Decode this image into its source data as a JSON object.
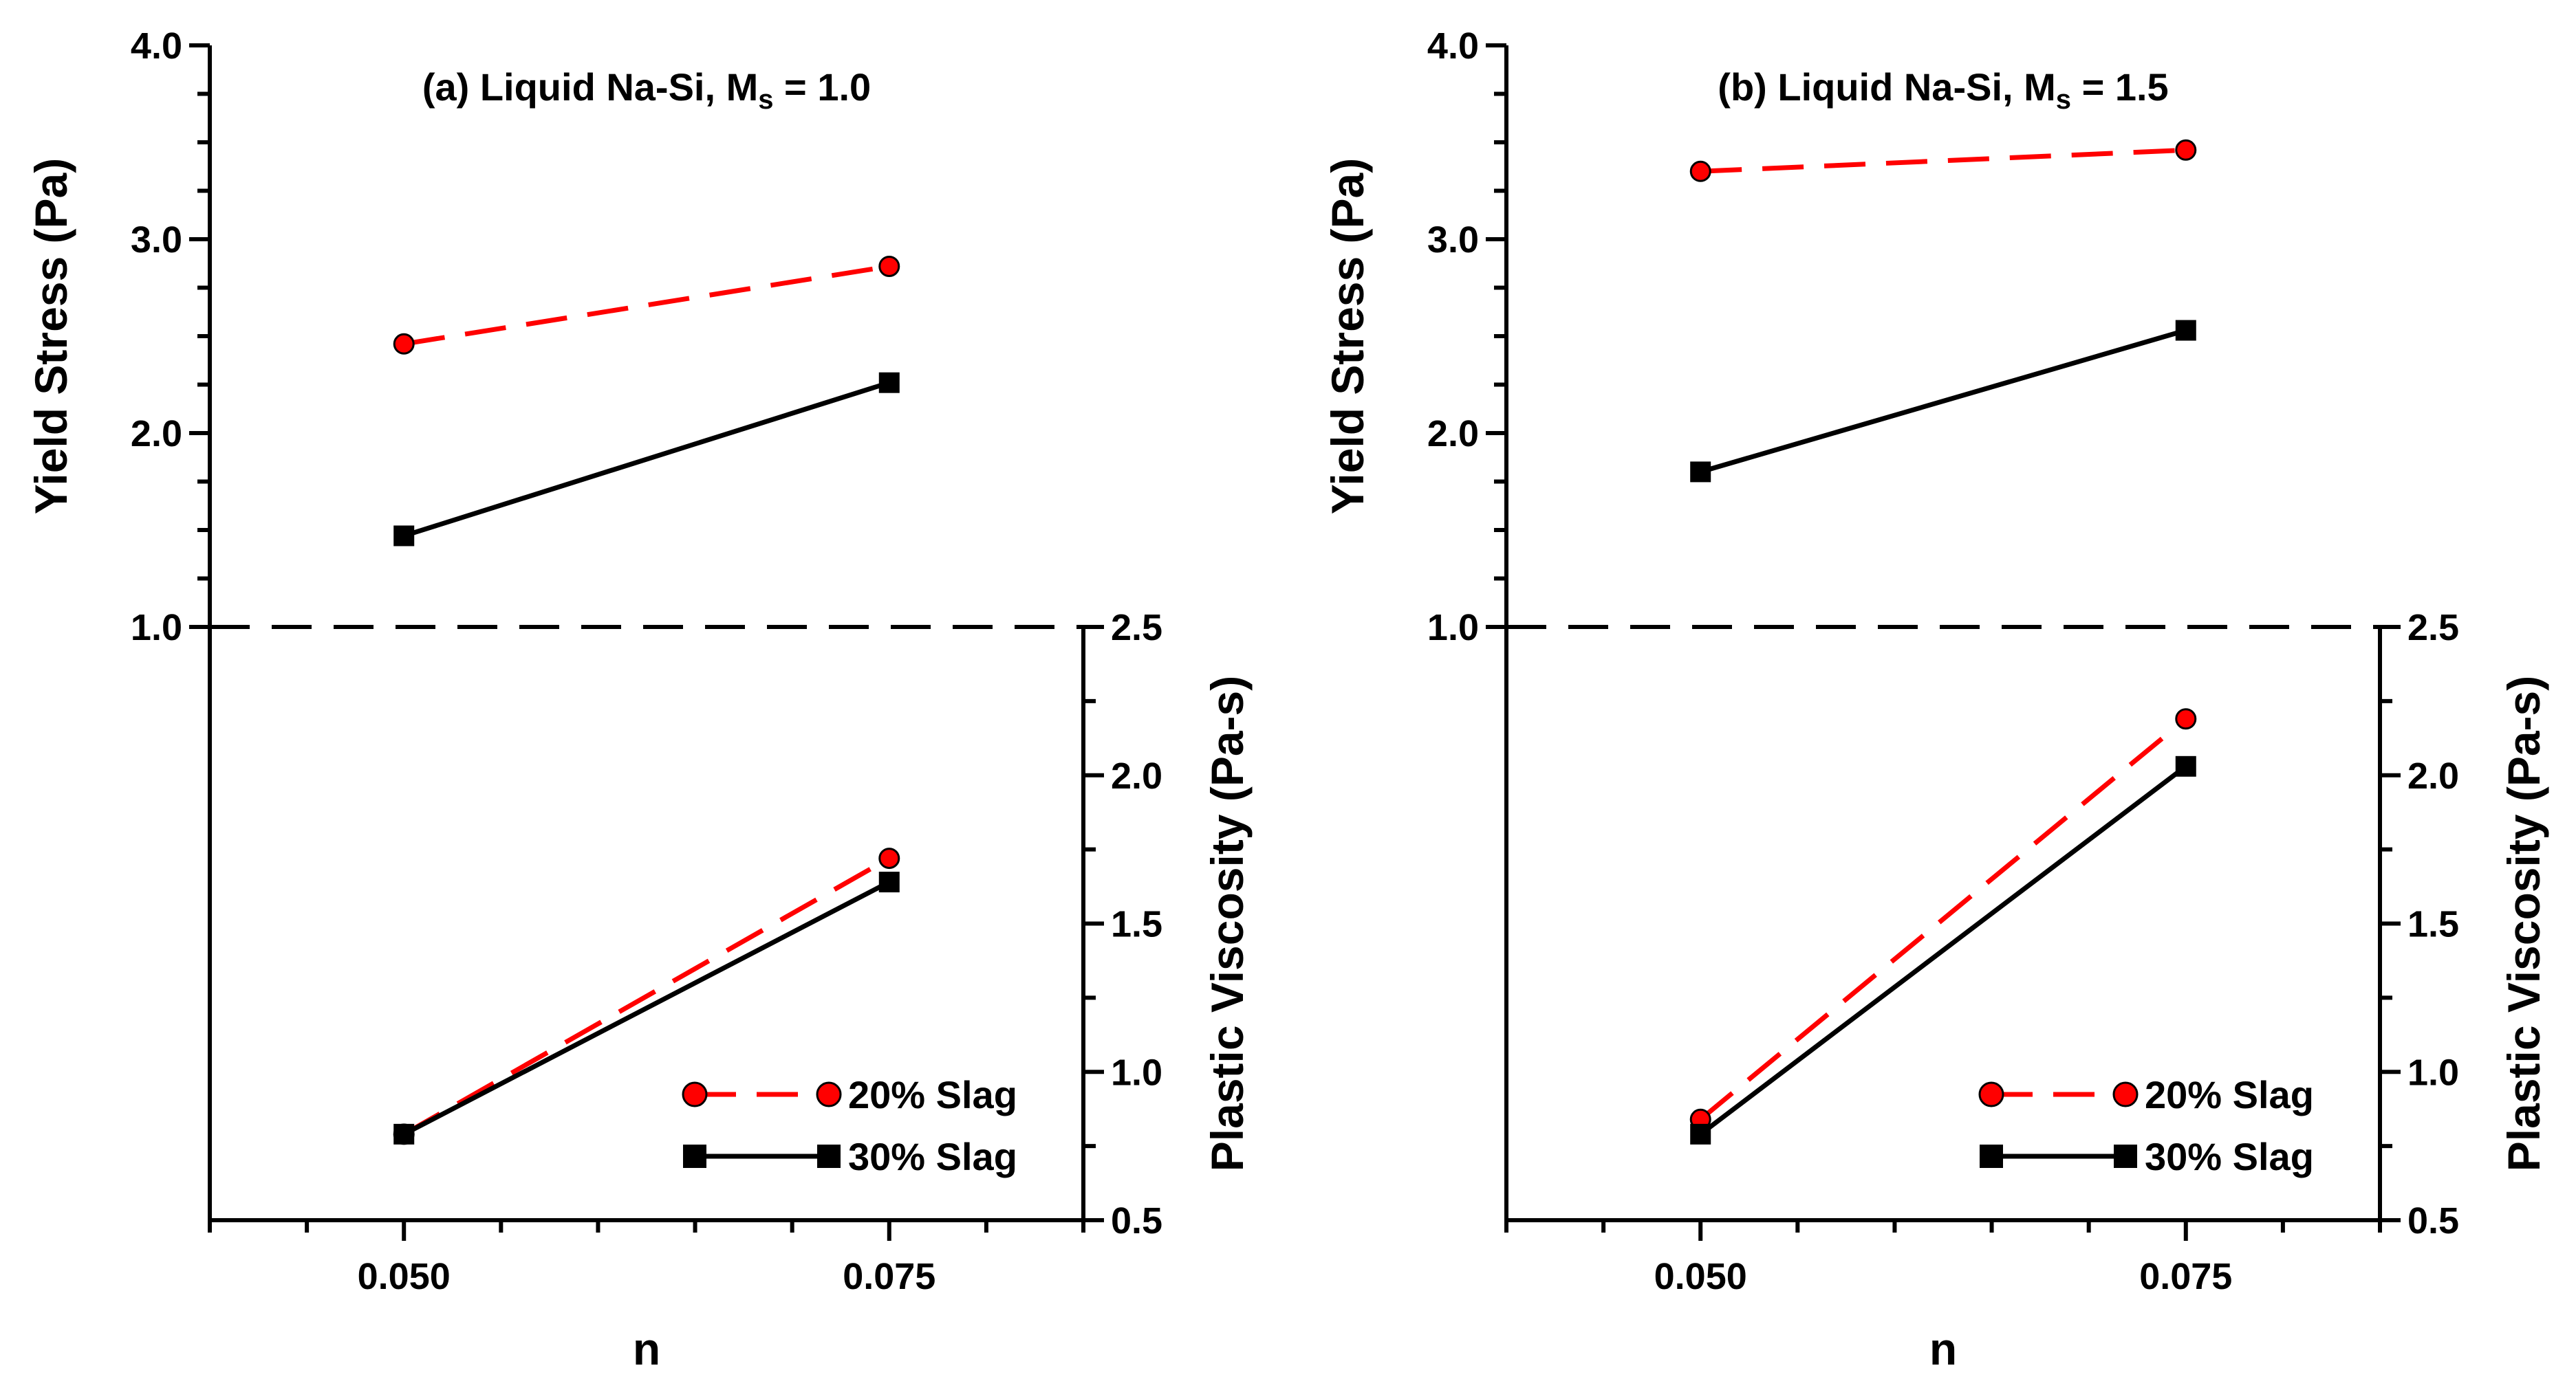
{
  "chart_data": [
    {
      "type": "line",
      "title": "(a) Liquid Na-Si, M",
      "title_sub": "s",
      "title_tail": " = 1.0",
      "xlabel": "n",
      "ylabel_left": "Yield Stress (Pa)",
      "ylabel_right": "Plastic Viscosity (Pa-s)",
      "xlim": [
        0.04,
        0.085
      ],
      "x_ticks": [
        "0.050",
        "0.075"
      ],
      "x_tick_values": [
        0.05,
        0.075
      ],
      "y_left_lim": [
        1.0,
        4.0
      ],
      "y_left_ticks": [
        "1.0",
        "2.0",
        "3.0",
        "4.0"
      ],
      "y_right_lim": [
        0.5,
        2.5
      ],
      "y_right_ticks": [
        "0.5",
        "1.0",
        "1.5",
        "2.0",
        "2.5"
      ],
      "divider_y": 1.0,
      "yield_series": [
        {
          "name": "20% Slag",
          "x": [
            0.05,
            0.075
          ],
          "y": [
            2.46,
            2.86
          ],
          "color": "#ff0000",
          "dashed": true,
          "marker": "circle"
        },
        {
          "name": "30% Slag",
          "x": [
            0.05,
            0.075
          ],
          "y": [
            1.47,
            2.26
          ],
          "color": "#000000",
          "dashed": false,
          "marker": "square"
        }
      ],
      "viscosity_series": [
        {
          "name": "20% Slag",
          "x": [
            0.05,
            0.075
          ],
          "y": [
            0.79,
            1.72
          ],
          "color": "#ff0000",
          "dashed": true,
          "marker": "circle"
        },
        {
          "name": "30% Slag",
          "x": [
            0.05,
            0.075
          ],
          "y": [
            0.79,
            1.64
          ],
          "color": "#000000",
          "dashed": false,
          "marker": "square"
        }
      ],
      "legend": [
        "20% Slag",
        "30% Slag"
      ]
    },
    {
      "type": "line",
      "title": "(b) Liquid Na-Si, M",
      "title_sub": "s",
      "title_tail": " = 1.5",
      "xlabel": "n",
      "ylabel_left": "Yield Stress (Pa)",
      "ylabel_right": "Plastic Viscosity (Pa-s)",
      "xlim": [
        0.04,
        0.085
      ],
      "x_ticks": [
        "0.050",
        "0.075"
      ],
      "x_tick_values": [
        0.05,
        0.075
      ],
      "y_left_lim": [
        1.0,
        4.0
      ],
      "y_left_ticks": [
        "1.0",
        "2.0",
        "3.0",
        "4.0"
      ],
      "y_right_lim": [
        0.5,
        2.5
      ],
      "y_right_ticks": [
        "0.5",
        "1.0",
        "1.5",
        "2.0",
        "2.5"
      ],
      "divider_y": 1.0,
      "yield_series": [
        {
          "name": "20% Slag",
          "x": [
            0.05,
            0.075
          ],
          "y": [
            3.35,
            3.46
          ],
          "color": "#ff0000",
          "dashed": true,
          "marker": "circle"
        },
        {
          "name": "30% Slag",
          "x": [
            0.05,
            0.075
          ],
          "y": [
            1.8,
            2.53
          ],
          "color": "#000000",
          "dashed": false,
          "marker": "square"
        }
      ],
      "viscosity_series": [
        {
          "name": "20% Slag",
          "x": [
            0.05,
            0.075
          ],
          "y": [
            0.84,
            2.19
          ],
          "color": "#ff0000",
          "dashed": true,
          "marker": "circle"
        },
        {
          "name": "30% Slag",
          "x": [
            0.05,
            0.075
          ],
          "y": [
            0.79,
            2.03
          ],
          "color": "#000000",
          "dashed": false,
          "marker": "square"
        }
      ],
      "legend": [
        "20% Slag",
        "30% Slag"
      ]
    }
  ]
}
